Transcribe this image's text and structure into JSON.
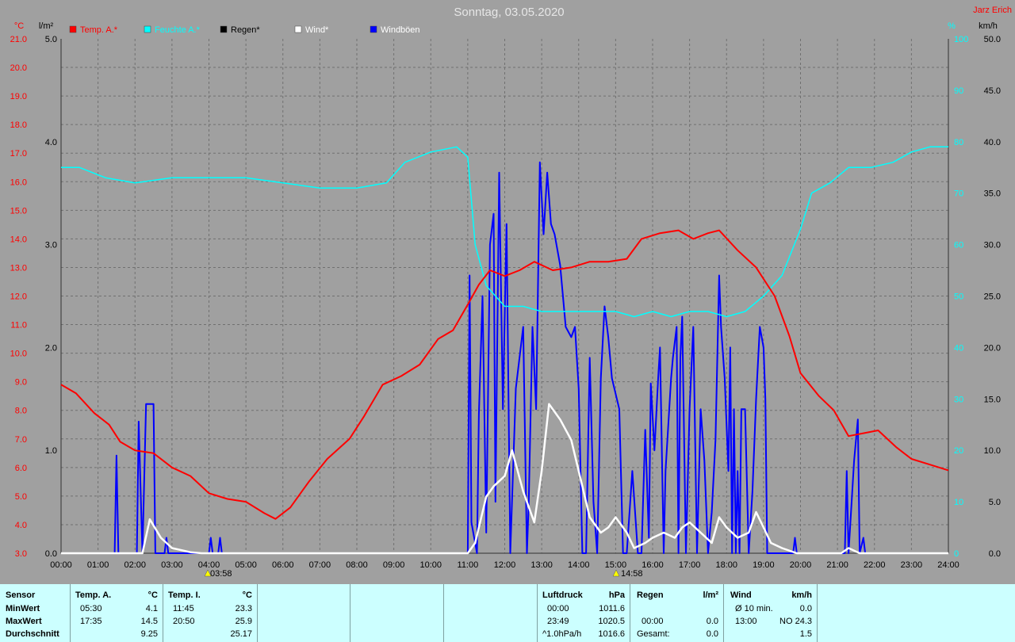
{
  "header": {
    "title": "Sonntag, 03.05.2020",
    "author": "Jarz Erich",
    "unit_temp": "°C",
    "unit_rain": "l/m²",
    "unit_hum": "%",
    "unit_wind": "km/h"
  },
  "legend": [
    {
      "label": "Temp. A.*",
      "color": "#ff0000"
    },
    {
      "label": "Feuchte A.*",
      "color": "#00ffff"
    },
    {
      "label": "Regen*",
      "color": "#000000"
    },
    {
      "label": "Wind*",
      "color": "#ffffff"
    },
    {
      "label": "Windböen",
      "color": "#0000ff"
    }
  ],
  "markers": {
    "sunrise": "03:58",
    "sunset": "14:58"
  },
  "chart_data": {
    "type": "line",
    "x_unit": "hour of day",
    "x_ticks": [
      "00:00",
      "01:00",
      "02:00",
      "03:00",
      "04:00",
      "05:00",
      "06:00",
      "07:00",
      "08:00",
      "09:00",
      "10:00",
      "11:00",
      "12:00",
      "13:00",
      "14:00",
      "15:00",
      "16:00",
      "17:00",
      "18:00",
      "19:00",
      "20:00",
      "21:00",
      "22:00",
      "23:00",
      "24:00"
    ],
    "axes": {
      "temp": {
        "label": "°C",
        "range": [
          3.0,
          21.0
        ],
        "ticks": [
          "3.0",
          "4.0",
          "5.0",
          "6.0",
          "7.0",
          "8.0",
          "9.0",
          "10.0",
          "11.0",
          "12.0",
          "13.0",
          "14.0",
          "15.0",
          "16.0",
          "17.0",
          "18.0",
          "19.0",
          "20.0",
          "21.0"
        ]
      },
      "rain": {
        "label": "l/m²",
        "range": [
          0.0,
          5.0
        ],
        "ticks": [
          "0.0",
          "1.0",
          "2.0",
          "3.0",
          "4.0",
          "5.0"
        ]
      },
      "humidity": {
        "label": "%",
        "range": [
          0,
          100
        ],
        "ticks": [
          "0",
          "10",
          "20",
          "30",
          "40",
          "50",
          "60",
          "70",
          "80",
          "90",
          "100"
        ]
      },
      "wind": {
        "label": "km/h",
        "range": [
          0.0,
          50.0
        ],
        "ticks": [
          "0.0",
          "5.0",
          "10.0",
          "15.0",
          "20.0",
          "25.0",
          "30.0",
          "35.0",
          "40.0",
          "45.0",
          "50.0"
        ]
      }
    },
    "grid": true,
    "series": [
      {
        "name": "Temp. A.*",
        "axis": "temp",
        "color": "#ff0000",
        "points": [
          [
            0,
            8.9
          ],
          [
            0.4,
            8.6
          ],
          [
            0.9,
            7.9
          ],
          [
            1.3,
            7.5
          ],
          [
            1.6,
            6.9
          ],
          [
            2.0,
            6.6
          ],
          [
            2.5,
            6.5
          ],
          [
            3.0,
            6.0
          ],
          [
            3.5,
            5.7
          ],
          [
            4.0,
            5.1
          ],
          [
            4.5,
            4.9
          ],
          [
            5.0,
            4.8
          ],
          [
            5.5,
            4.4
          ],
          [
            5.8,
            4.2
          ],
          [
            6.2,
            4.6
          ],
          [
            6.7,
            5.5
          ],
          [
            7.2,
            6.3
          ],
          [
            7.8,
            7.0
          ],
          [
            8.2,
            7.8
          ],
          [
            8.7,
            8.9
          ],
          [
            9.2,
            9.2
          ],
          [
            9.7,
            9.6
          ],
          [
            10.2,
            10.5
          ],
          [
            10.6,
            10.8
          ],
          [
            11.0,
            11.7
          ],
          [
            11.3,
            12.4
          ],
          [
            11.6,
            12.9
          ],
          [
            12.0,
            12.7
          ],
          [
            12.4,
            12.9
          ],
          [
            12.8,
            13.2
          ],
          [
            13.3,
            12.9
          ],
          [
            13.8,
            13.0
          ],
          [
            14.3,
            13.2
          ],
          [
            14.8,
            13.2
          ],
          [
            15.3,
            13.3
          ],
          [
            15.7,
            14.0
          ],
          [
            16.2,
            14.2
          ],
          [
            16.7,
            14.3
          ],
          [
            17.1,
            14.0
          ],
          [
            17.5,
            14.2
          ],
          [
            17.8,
            14.3
          ],
          [
            18.3,
            13.6
          ],
          [
            18.8,
            13.0
          ],
          [
            19.3,
            12.0
          ],
          [
            19.7,
            10.6
          ],
          [
            20.0,
            9.3
          ],
          [
            20.5,
            8.5
          ],
          [
            20.9,
            8.0
          ],
          [
            21.3,
            7.1
          ],
          [
            21.7,
            7.2
          ],
          [
            22.1,
            7.3
          ],
          [
            22.6,
            6.7
          ],
          [
            23.0,
            6.3
          ],
          [
            23.5,
            6.1
          ],
          [
            24.0,
            5.9
          ]
        ]
      },
      {
        "name": "Feuchte A.*",
        "axis": "humidity",
        "color": "#00ffff",
        "points": [
          [
            0,
            75
          ],
          [
            0.5,
            75
          ],
          [
            1.2,
            73
          ],
          [
            2.0,
            72
          ],
          [
            3.0,
            73
          ],
          [
            4.0,
            73
          ],
          [
            5.0,
            73
          ],
          [
            6.0,
            72
          ],
          [
            7.0,
            71
          ],
          [
            8.0,
            71
          ],
          [
            8.8,
            72
          ],
          [
            9.3,
            76
          ],
          [
            10.0,
            78
          ],
          [
            10.7,
            79
          ],
          [
            11.0,
            77
          ],
          [
            11.2,
            60
          ],
          [
            11.5,
            52
          ],
          [
            12.0,
            48
          ],
          [
            12.5,
            48
          ],
          [
            13.0,
            47
          ],
          [
            13.5,
            47
          ],
          [
            14.0,
            47
          ],
          [
            14.5,
            47
          ],
          [
            15.0,
            47
          ],
          [
            15.5,
            46
          ],
          [
            16.0,
            47
          ],
          [
            16.5,
            46
          ],
          [
            17.0,
            47
          ],
          [
            17.5,
            47
          ],
          [
            18.0,
            46
          ],
          [
            18.5,
            47
          ],
          [
            19.0,
            50
          ],
          [
            19.5,
            54
          ],
          [
            20.0,
            63
          ],
          [
            20.3,
            70
          ],
          [
            20.8,
            72
          ],
          [
            21.3,
            75
          ],
          [
            21.9,
            75
          ],
          [
            22.5,
            76
          ],
          [
            23.0,
            78
          ],
          [
            23.5,
            79
          ],
          [
            24.0,
            79
          ]
        ]
      },
      {
        "name": "Wind*",
        "axis": "wind",
        "color": "#ffffff",
        "points": [
          [
            0,
            0
          ],
          [
            1.5,
            0
          ],
          [
            2.2,
            0
          ],
          [
            2.4,
            3.3
          ],
          [
            2.7,
            1.5
          ],
          [
            3.0,
            0.5
          ],
          [
            3.5,
            0.1
          ],
          [
            3.8,
            0
          ],
          [
            11.0,
            0
          ],
          [
            11.2,
            1.0
          ],
          [
            11.5,
            5.5
          ],
          [
            11.7,
            6.5
          ],
          [
            12.0,
            7.5
          ],
          [
            12.2,
            10.0
          ],
          [
            12.5,
            6.0
          ],
          [
            12.8,
            3.0
          ],
          [
            13.0,
            8.0
          ],
          [
            13.2,
            14.5
          ],
          [
            13.5,
            13.0
          ],
          [
            13.8,
            11.0
          ],
          [
            14.1,
            6.5
          ],
          [
            14.3,
            3.5
          ],
          [
            14.6,
            2.0
          ],
          [
            14.8,
            2.5
          ],
          [
            15.0,
            3.5
          ],
          [
            15.3,
            2.0
          ],
          [
            15.5,
            0.5
          ],
          [
            15.8,
            1.0
          ],
          [
            16.0,
            1.5
          ],
          [
            16.3,
            2.0
          ],
          [
            16.6,
            1.5
          ],
          [
            16.8,
            2.5
          ],
          [
            17.0,
            3.0
          ],
          [
            17.3,
            2.0
          ],
          [
            17.6,
            1.0
          ],
          [
            17.8,
            3.5
          ],
          [
            18.0,
            2.5
          ],
          [
            18.3,
            1.5
          ],
          [
            18.6,
            2.0
          ],
          [
            18.8,
            4.0
          ],
          [
            19.0,
            2.5
          ],
          [
            19.2,
            1.0
          ],
          [
            19.5,
            0.5
          ],
          [
            19.9,
            0
          ],
          [
            21.1,
            0
          ],
          [
            21.3,
            0.5
          ],
          [
            21.6,
            0
          ],
          [
            24.0,
            0
          ]
        ]
      },
      {
        "name": "Windböen",
        "axis": "wind",
        "color": "#0000ff",
        "points": [
          [
            0,
            0
          ],
          [
            1.45,
            0
          ],
          [
            1.5,
            9.5
          ],
          [
            1.55,
            0
          ],
          [
            2.05,
            0
          ],
          [
            2.1,
            12.8
          ],
          [
            2.2,
            0
          ],
          [
            2.3,
            14.5
          ],
          [
            2.5,
            14.5
          ],
          [
            2.55,
            0
          ],
          [
            2.8,
            0
          ],
          [
            2.85,
            1.5
          ],
          [
            2.9,
            0
          ],
          [
            4.0,
            0
          ],
          [
            4.05,
            1.5
          ],
          [
            4.1,
            0
          ],
          [
            4.25,
            0
          ],
          [
            4.3,
            1.5
          ],
          [
            4.35,
            0
          ],
          [
            11.0,
            0
          ],
          [
            11.05,
            27.0
          ],
          [
            11.1,
            3.0
          ],
          [
            11.25,
            0
          ],
          [
            11.3,
            13.5
          ],
          [
            11.4,
            25.0
          ],
          [
            11.5,
            2.0
          ],
          [
            11.6,
            30.0
          ],
          [
            11.7,
            33.0
          ],
          [
            11.75,
            5.0
          ],
          [
            11.85,
            37.0
          ],
          [
            11.95,
            14.0
          ],
          [
            12.05,
            32.0
          ],
          [
            12.15,
            0
          ],
          [
            12.3,
            16.0
          ],
          [
            12.5,
            22.0
          ],
          [
            12.6,
            0
          ],
          [
            12.65,
            5.0
          ],
          [
            12.75,
            22.0
          ],
          [
            12.85,
            14.0
          ],
          [
            12.95,
            38.0
          ],
          [
            13.05,
            31.0
          ],
          [
            13.15,
            37.0
          ],
          [
            13.25,
            32.0
          ],
          [
            13.35,
            31.0
          ],
          [
            13.5,
            28.0
          ],
          [
            13.65,
            22.0
          ],
          [
            13.8,
            21.0
          ],
          [
            13.9,
            22.0
          ],
          [
            14.0,
            16.0
          ],
          [
            14.1,
            0
          ],
          [
            14.2,
            0
          ],
          [
            14.3,
            19.0
          ],
          [
            14.4,
            5.0
          ],
          [
            14.5,
            0
          ],
          [
            14.6,
            17.0
          ],
          [
            14.7,
            24.0
          ],
          [
            14.8,
            21.0
          ],
          [
            14.9,
            17.0
          ],
          [
            15.1,
            14.0
          ],
          [
            15.2,
            0
          ],
          [
            15.3,
            0
          ],
          [
            15.45,
            8.0
          ],
          [
            15.6,
            0
          ],
          [
            15.7,
            0
          ],
          [
            15.8,
            12.0
          ],
          [
            15.9,
            1.5
          ],
          [
            15.95,
            16.5
          ],
          [
            16.05,
            10.0
          ],
          [
            16.15,
            17.0
          ],
          [
            16.2,
            20.0
          ],
          [
            16.3,
            0
          ],
          [
            16.35,
            8.0
          ],
          [
            16.5,
            17.0
          ],
          [
            16.55,
            19.0
          ],
          [
            16.65,
            22.0
          ],
          [
            16.7,
            0
          ],
          [
            16.75,
            19.0
          ],
          [
            16.8,
            23.0
          ],
          [
            16.9,
            0
          ],
          [
            17.0,
            14.0
          ],
          [
            17.1,
            22.0
          ],
          [
            17.2,
            0
          ],
          [
            17.3,
            14.0
          ],
          [
            17.4,
            9.0
          ],
          [
            17.5,
            0
          ],
          [
            17.6,
            4.0
          ],
          [
            17.7,
            11.0
          ],
          [
            17.8,
            27.0
          ],
          [
            17.85,
            22.0
          ],
          [
            17.95,
            17.0
          ],
          [
            18.05,
            8.0
          ],
          [
            18.1,
            20.0
          ],
          [
            18.15,
            0
          ],
          [
            18.2,
            14.0
          ],
          [
            18.25,
            0
          ],
          [
            18.3,
            8.0
          ],
          [
            18.35,
            0
          ],
          [
            18.4,
            14.0
          ],
          [
            18.5,
            14.0
          ],
          [
            18.6,
            0
          ],
          [
            18.7,
            6.0
          ],
          [
            18.8,
            15.0
          ],
          [
            18.9,
            22.0
          ],
          [
            19.0,
            20.0
          ],
          [
            19.05,
            15.0
          ],
          [
            19.1,
            0
          ],
          [
            19.8,
            0
          ],
          [
            19.85,
            1.5
          ],
          [
            19.9,
            0
          ],
          [
            21.2,
            0
          ],
          [
            21.25,
            8.0
          ],
          [
            21.3,
            0
          ],
          [
            21.45,
            9.0
          ],
          [
            21.55,
            13.0
          ],
          [
            21.6,
            0
          ],
          [
            21.7,
            1.5
          ],
          [
            21.75,
            0
          ],
          [
            24.0,
            0
          ]
        ]
      }
    ]
  },
  "panel": {
    "sensor": {
      "title": "Sensor",
      "rows": [
        "MinWert",
        "MaxWert",
        "Durchschnitt"
      ]
    },
    "temp_a": {
      "title": "Temp. A.",
      "unit": "°C",
      "times": [
        "05:30",
        "17:35",
        ""
      ],
      "values": [
        "4.1",
        "14.5",
        "9.25"
      ]
    },
    "temp_i": {
      "title": "Temp. I.",
      "unit": "°C",
      "times": [
        "11:45",
        "20:50",
        ""
      ],
      "values": [
        "23.3",
        "25.9",
        "25.17"
      ]
    },
    "luftdruck": {
      "title": "Luftdruck",
      "unit": "hPa",
      "times": [
        "00:00",
        "23:49",
        "^1.0hPa/h"
      ],
      "values": [
        "1011.6",
        "1020.5",
        "1016.6"
      ]
    },
    "regen": {
      "title": "Regen",
      "unit": "l/m²",
      "times": [
        "",
        "00:00",
        "Gesamt:"
      ],
      "values": [
        "",
        "0.0",
        "0.0"
      ]
    },
    "wind": {
      "title": "Wind",
      "unit": "km/h",
      "times": [
        "Ø 10 min.",
        "13:00",
        ""
      ],
      "values": [
        "0.0",
        "NO 24.3",
        "1.5"
      ]
    }
  }
}
